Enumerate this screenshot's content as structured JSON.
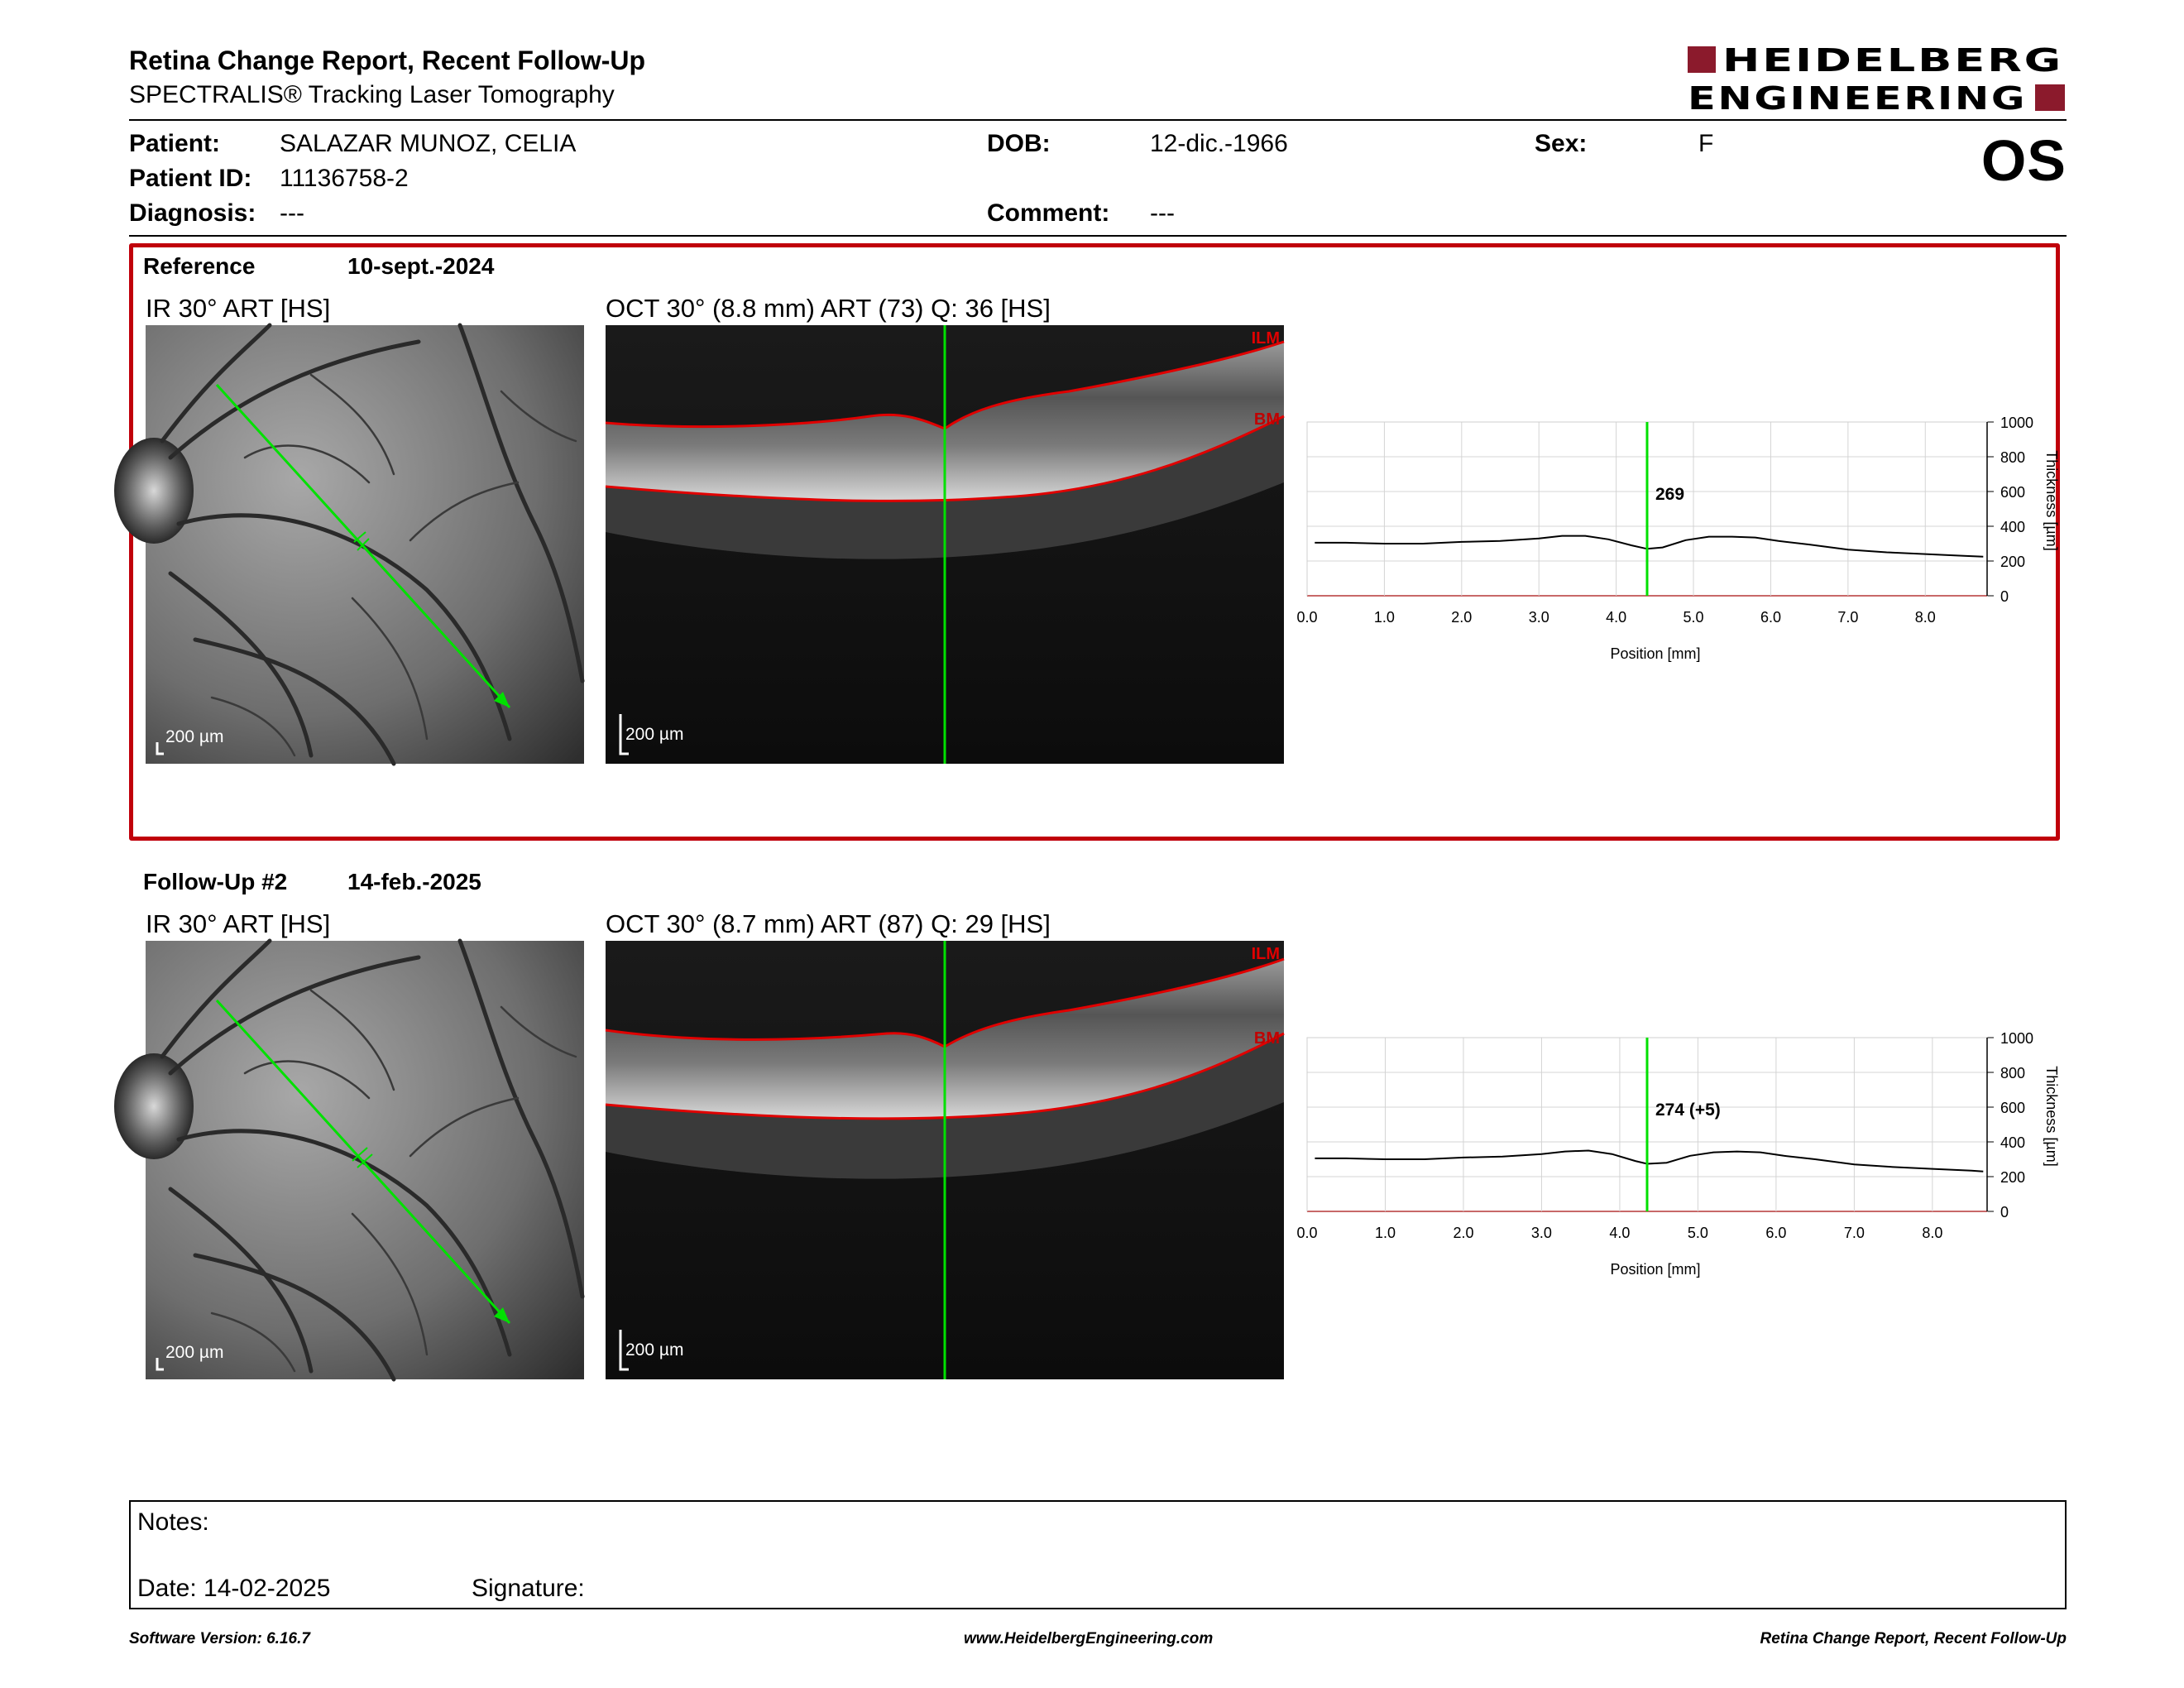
{
  "header": {
    "title": "Retina Change Report, Recent Follow-Up",
    "subtitle": "SPECTRALIS® Tracking Laser Tomography",
    "logo_line1": "HEIDELBERG",
    "logo_line2": "ENGINEERING",
    "eye": "OS"
  },
  "patient": {
    "name_label": "Patient:",
    "name": "SALAZAR MUNOZ, CELIA",
    "id_label": "Patient ID:",
    "id": "11136758-2",
    "diagnosis_label": "Diagnosis:",
    "diagnosis": "---",
    "dob_label": "DOB:",
    "dob": "12-dic.-1966",
    "comment_label": "Comment:",
    "comment": "---",
    "sex_label": "Sex:",
    "sex": "F"
  },
  "reference": {
    "label": "Reference",
    "date": "10-sept.-2024",
    "ir_label": "IR 30° ART [HS]",
    "oct_label": "OCT 30° (8.8 mm) ART (73) Q: 36 [HS]",
    "scale_ir": "200 µm",
    "scale_oct": "200 µm",
    "ilm": "ILM",
    "bm": "BM"
  },
  "followup": {
    "label": "Follow-Up #2",
    "date": "14-feb.-2025",
    "ir_label": "IR 30° ART [HS]",
    "oct_label": "OCT 30° (8.7 mm) ART (87) Q: 29 [HS]",
    "scale_ir": "200 µm",
    "scale_oct": "200 µm",
    "ilm": "ILM",
    "bm": "BM"
  },
  "chart_data": [
    {
      "type": "line",
      "title": "",
      "xlabel": "Position [mm]",
      "ylabel": "Thickness [µm]",
      "xlim": [
        0.0,
        8.8
      ],
      "ylim": [
        0,
        1000
      ],
      "x_ticks": [
        "0.0",
        "1.0",
        "2.0",
        "3.0",
        "4.0",
        "5.0",
        "6.0",
        "7.0",
        "8.0"
      ],
      "y_ticks": [
        "0",
        "200",
        "400",
        "600",
        "800",
        "1000"
      ],
      "grid": true,
      "marker_x": 4.4,
      "marker_label": "269",
      "series": [
        {
          "x": [
            0.1,
            0.5,
            1.0,
            1.5,
            2.0,
            2.5,
            3.0,
            3.3,
            3.6,
            3.9,
            4.2,
            4.4,
            4.6,
            4.9,
            5.2,
            5.5,
            5.8,
            6.1,
            6.5,
            7.0,
            7.5,
            8.0,
            8.5,
            8.75
          ],
          "values": [
            305,
            305,
            300,
            300,
            310,
            315,
            330,
            345,
            345,
            325,
            290,
            270,
            278,
            320,
            340,
            340,
            335,
            315,
            295,
            265,
            250,
            240,
            230,
            225
          ]
        }
      ]
    },
    {
      "type": "line",
      "title": "",
      "xlabel": "Position [mm]",
      "ylabel": "Thickness [µm]",
      "xlim": [
        0.0,
        8.7
      ],
      "ylim": [
        0,
        1000
      ],
      "x_ticks": [
        "0.0",
        "1.0",
        "2.0",
        "3.0",
        "4.0",
        "5.0",
        "6.0",
        "7.0",
        "8.0"
      ],
      "y_ticks": [
        "0",
        "200",
        "400",
        "600",
        "800",
        "1000"
      ],
      "grid": true,
      "marker_x": 4.35,
      "marker_label": "274 (+5)",
      "series": [
        {
          "x": [
            0.1,
            0.5,
            1.0,
            1.5,
            2.0,
            2.5,
            3.0,
            3.3,
            3.6,
            3.9,
            4.2,
            4.35,
            4.6,
            4.9,
            5.2,
            5.5,
            5.8,
            6.1,
            6.5,
            7.0,
            7.5,
            8.0,
            8.5,
            8.65
          ],
          "values": [
            305,
            305,
            300,
            300,
            310,
            315,
            330,
            345,
            350,
            330,
            290,
            274,
            280,
            320,
            340,
            345,
            340,
            320,
            300,
            270,
            255,
            245,
            235,
            230
          ]
        }
      ]
    }
  ],
  "notes": {
    "notes_label": "Notes:",
    "date_label": "Date: 14-02-2025",
    "signature_label": "Signature:"
  },
  "footer": {
    "software": "Software Version: 6.16.7",
    "website": "www.HeidelbergEngineering.com",
    "report": "Retina Change Report, Recent Follow-Up"
  },
  "colors": {
    "brand_red": "#8b1a2c",
    "frame_red": "#c0000b",
    "scan_green": "#00e000",
    "segment_red": "#e00000"
  }
}
